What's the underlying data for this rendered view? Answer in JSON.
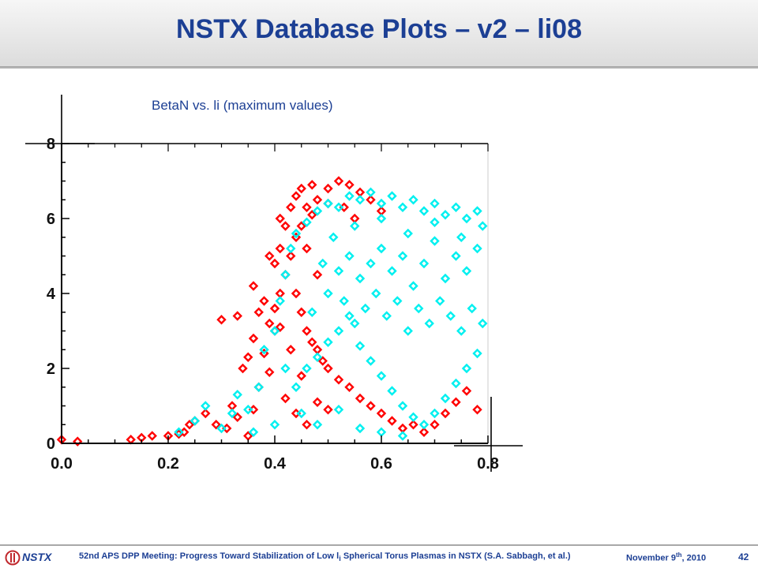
{
  "slide": {
    "title": "NSTX Database Plots – v2 – li08",
    "page_number": "42"
  },
  "footer": {
    "logo_text": "NSTX",
    "meeting_pre": "52nd APS DPP Meeting: Progress Toward Stabilization of Low l",
    "meeting_sub": "i",
    "meeting_post": " Spherical Torus Plasmas in NSTX (S.A. Sabbagh, et al.)",
    "date_pre": "November 9",
    "date_sup": "th",
    "date_post": ", 2010"
  },
  "colors": {
    "title": "#1c3f94",
    "series_a": "#ff0000",
    "series_b": "#00f0f0",
    "axis": "#000000"
  },
  "chart_data": {
    "type": "scatter",
    "title": "BetaN vs. li (maximum values)",
    "xlabel": "",
    "ylabel": "",
    "xlim": [
      0.0,
      0.8
    ],
    "ylim": [
      0.0,
      8.0
    ],
    "xticks": [
      "0.0",
      "0.2",
      "0.4",
      "0.6",
      "0.8"
    ],
    "yticks": [
      "0",
      "2",
      "4",
      "6",
      "8"
    ],
    "grid": false,
    "legend": "none",
    "marker": "diamond",
    "series": [
      {
        "color": "#ff0000",
        "points": [
          [
            0.0,
            0.1
          ],
          [
            0.03,
            0.05
          ],
          [
            0.13,
            0.1
          ],
          [
            0.15,
            0.15
          ],
          [
            0.17,
            0.2
          ],
          [
            0.2,
            0.2
          ],
          [
            0.22,
            0.25
          ],
          [
            0.23,
            0.3
          ],
          [
            0.24,
            0.5
          ],
          [
            0.25,
            0.6
          ],
          [
            0.27,
            0.8
          ],
          [
            0.29,
            0.5
          ],
          [
            0.31,
            0.4
          ],
          [
            0.32,
            1.0
          ],
          [
            0.33,
            0.7
          ],
          [
            0.35,
            0.2
          ],
          [
            0.36,
            0.9
          ],
          [
            0.37,
            1.5
          ],
          [
            0.38,
            2.4
          ],
          [
            0.39,
            1.9
          ],
          [
            0.4,
            3.0
          ],
          [
            0.4,
            4.8
          ],
          [
            0.41,
            5.2
          ],
          [
            0.42,
            5.8
          ],
          [
            0.43,
            6.3
          ],
          [
            0.44,
            6.6
          ],
          [
            0.45,
            6.8
          ],
          [
            0.46,
            6.3
          ],
          [
            0.47,
            6.9
          ],
          [
            0.48,
            6.5
          ],
          [
            0.5,
            6.8
          ],
          [
            0.52,
            7.0
          ],
          [
            0.54,
            6.9
          ],
          [
            0.56,
            6.7
          ],
          [
            0.58,
            6.5
          ],
          [
            0.6,
            6.2
          ],
          [
            0.43,
            5.0
          ],
          [
            0.44,
            4.0
          ],
          [
            0.45,
            3.5
          ],
          [
            0.46,
            3.0
          ],
          [
            0.47,
            2.7
          ],
          [
            0.48,
            2.5
          ],
          [
            0.49,
            2.2
          ],
          [
            0.5,
            2.0
          ],
          [
            0.52,
            1.7
          ],
          [
            0.54,
            1.5
          ],
          [
            0.56,
            1.2
          ],
          [
            0.58,
            1.0
          ],
          [
            0.6,
            0.8
          ],
          [
            0.62,
            0.6
          ],
          [
            0.64,
            0.4
          ],
          [
            0.66,
            0.5
          ],
          [
            0.68,
            0.3
          ],
          [
            0.7,
            0.5
          ],
          [
            0.72,
            0.8
          ],
          [
            0.74,
            1.1
          ],
          [
            0.76,
            1.4
          ],
          [
            0.78,
            0.9
          ],
          [
            0.42,
            4.5
          ],
          [
            0.41,
            4.0
          ],
          [
            0.4,
            3.6
          ],
          [
            0.39,
            3.2
          ],
          [
            0.37,
            3.5
          ],
          [
            0.33,
            3.4
          ],
          [
            0.36,
            2.8
          ],
          [
            0.35,
            2.3
          ],
          [
            0.34,
            2.0
          ],
          [
            0.3,
            3.3
          ],
          [
            0.44,
            5.5
          ],
          [
            0.45,
            5.8
          ],
          [
            0.47,
            6.1
          ],
          [
            0.5,
            6.4
          ],
          [
            0.53,
            6.3
          ],
          [
            0.55,
            6.0
          ],
          [
            0.42,
            1.2
          ],
          [
            0.44,
            0.8
          ],
          [
            0.46,
            0.5
          ],
          [
            0.48,
            1.1
          ],
          [
            0.5,
            0.9
          ],
          [
            0.45,
            1.8
          ],
          [
            0.43,
            2.5
          ],
          [
            0.41,
            3.1
          ],
          [
            0.38,
            3.8
          ],
          [
            0.36,
            4.2
          ],
          [
            0.39,
            5.0
          ],
          [
            0.41,
            6.0
          ],
          [
            0.46,
            5.2
          ],
          [
            0.48,
            4.5
          ]
        ]
      },
      {
        "color": "#00f0f0",
        "points": [
          [
            0.22,
            0.3
          ],
          [
            0.25,
            0.6
          ],
          [
            0.27,
            1.0
          ],
          [
            0.3,
            0.4
          ],
          [
            0.32,
            0.8
          ],
          [
            0.33,
            1.3
          ],
          [
            0.35,
            0.9
          ],
          [
            0.37,
            1.5
          ],
          [
            0.38,
            2.5
          ],
          [
            0.4,
            3.0
          ],
          [
            0.41,
            3.8
          ],
          [
            0.42,
            4.5
          ],
          [
            0.43,
            5.2
          ],
          [
            0.44,
            5.6
          ],
          [
            0.46,
            5.9
          ],
          [
            0.48,
            6.2
          ],
          [
            0.5,
            6.4
          ],
          [
            0.52,
            6.3
          ],
          [
            0.54,
            6.6
          ],
          [
            0.56,
            6.5
          ],
          [
            0.58,
            6.7
          ],
          [
            0.6,
            6.4
          ],
          [
            0.62,
            6.6
          ],
          [
            0.64,
            6.3
          ],
          [
            0.66,
            6.5
          ],
          [
            0.68,
            6.2
          ],
          [
            0.7,
            6.4
          ],
          [
            0.72,
            6.1
          ],
          [
            0.74,
            6.3
          ],
          [
            0.76,
            6.0
          ],
          [
            0.78,
            6.2
          ],
          [
            0.79,
            5.8
          ],
          [
            0.44,
            1.5
          ],
          [
            0.46,
            2.0
          ],
          [
            0.48,
            2.3
          ],
          [
            0.5,
            2.7
          ],
          [
            0.52,
            3.0
          ],
          [
            0.54,
            3.4
          ],
          [
            0.56,
            2.6
          ],
          [
            0.58,
            2.2
          ],
          [
            0.6,
            1.8
          ],
          [
            0.62,
            1.4
          ],
          [
            0.64,
            1.0
          ],
          [
            0.66,
            0.7
          ],
          [
            0.68,
            0.5
          ],
          [
            0.7,
            0.8
          ],
          [
            0.72,
            1.2
          ],
          [
            0.74,
            1.6
          ],
          [
            0.76,
            2.0
          ],
          [
            0.78,
            2.4
          ],
          [
            0.5,
            4.0
          ],
          [
            0.52,
            4.6
          ],
          [
            0.54,
            5.0
          ],
          [
            0.56,
            4.4
          ],
          [
            0.58,
            4.8
          ],
          [
            0.6,
            5.2
          ],
          [
            0.62,
            4.6
          ],
          [
            0.64,
            5.0
          ],
          [
            0.66,
            4.2
          ],
          [
            0.68,
            4.8
          ],
          [
            0.7,
            5.4
          ],
          [
            0.72,
            4.4
          ],
          [
            0.74,
            5.0
          ],
          [
            0.76,
            4.6
          ],
          [
            0.78,
            5.2
          ],
          [
            0.47,
            3.5
          ],
          [
            0.49,
            4.8
          ],
          [
            0.51,
            5.5
          ],
          [
            0.53,
            3.8
          ],
          [
            0.55,
            3.2
          ],
          [
            0.57,
            3.6
          ],
          [
            0.59,
            4.0
          ],
          [
            0.61,
            3.4
          ],
          [
            0.63,
            3.8
          ],
          [
            0.65,
            3.0
          ],
          [
            0.67,
            3.6
          ],
          [
            0.69,
            3.2
          ],
          [
            0.71,
            3.8
          ],
          [
            0.73,
            3.4
          ],
          [
            0.75,
            3.0
          ],
          [
            0.77,
            3.6
          ],
          [
            0.79,
            3.2
          ],
          [
            0.45,
            0.8
          ],
          [
            0.48,
            0.5
          ],
          [
            0.52,
            0.9
          ],
          [
            0.56,
            0.4
          ],
          [
            0.6,
            0.3
          ],
          [
            0.64,
            0.2
          ],
          [
            0.36,
            0.3
          ],
          [
            0.4,
            0.5
          ],
          [
            0.42,
            2.0
          ],
          [
            0.55,
            5.8
          ],
          [
            0.6,
            6.0
          ],
          [
            0.65,
            5.6
          ],
          [
            0.7,
            5.9
          ],
          [
            0.75,
            5.5
          ]
        ]
      }
    ]
  }
}
